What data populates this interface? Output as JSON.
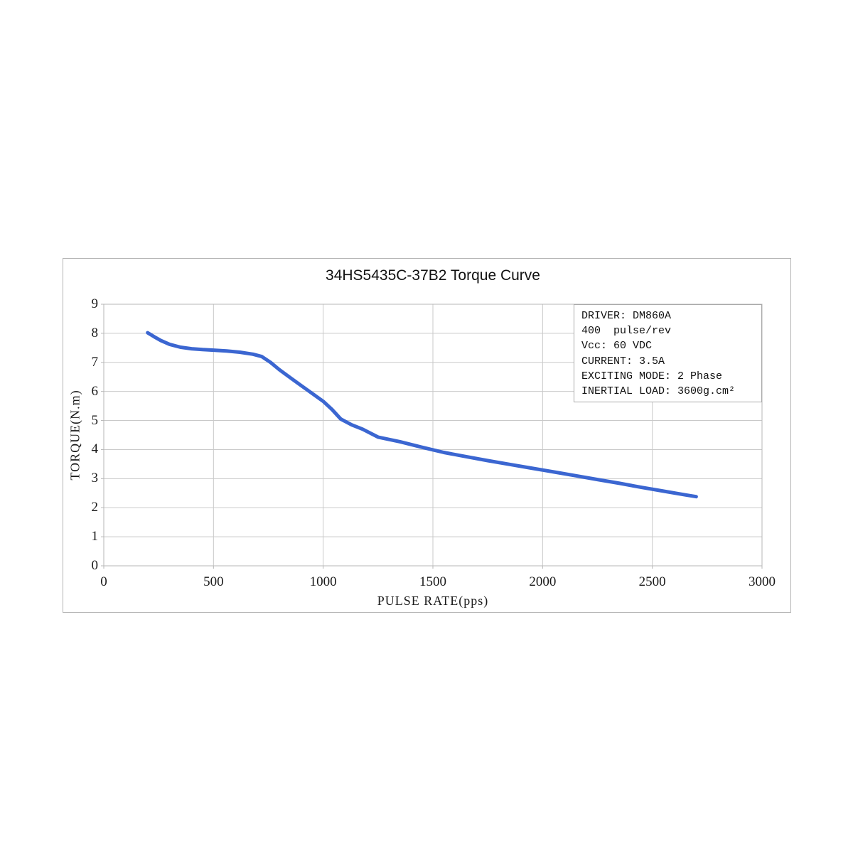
{
  "chart_data": {
    "type": "line",
    "title": "34HS5435C-37B2 Torque Curve",
    "xlabel": "PULSE RATE(pps)",
    "ylabel": "TORQUE(N.m)",
    "xlim": [
      0,
      3000
    ],
    "ylim": [
      0,
      9
    ],
    "x_ticks": [
      0,
      500,
      1000,
      1500,
      2000,
      2500,
      3000
    ],
    "y_ticks": [
      0,
      1,
      2,
      3,
      4,
      5,
      6,
      7,
      8,
      9
    ],
    "grid": true,
    "legend_position": "top-right",
    "colors": {
      "curve": "#3b66d1",
      "grid": "#c9c9c9",
      "plot_border": "#b7b7b7",
      "frame_border": "#b3b3b3",
      "text": "#1a1a1a",
      "background": "#ffffff"
    },
    "series": [
      {
        "name": "torque-curve",
        "x": [
          200,
          230,
          260,
          300,
          350,
          400,
          450,
          500,
          560,
          620,
          680,
          720,
          760,
          800,
          850,
          900,
          950,
          1000,
          1040,
          1080,
          1130,
          1180,
          1250,
          1350,
          1450,
          1550,
          1650,
          1750,
          1850,
          1950,
          2050,
          2150,
          2250,
          2350,
          2450,
          2550,
          2650,
          2700
        ],
        "y": [
          8.02,
          7.88,
          7.75,
          7.62,
          7.52,
          7.47,
          7.44,
          7.42,
          7.39,
          7.35,
          7.28,
          7.2,
          7.0,
          6.75,
          6.47,
          6.2,
          5.93,
          5.66,
          5.38,
          5.05,
          4.85,
          4.7,
          4.43,
          4.27,
          4.08,
          3.9,
          3.76,
          3.62,
          3.49,
          3.36,
          3.23,
          3.1,
          2.97,
          2.84,
          2.7,
          2.57,
          2.44,
          2.38
        ]
      }
    ],
    "info_box_lines": [
      "DRIVER: DM860A",
      "400  pulse/rev",
      "Vcc: 60 VDC",
      "CURRENT: 3.5A",
      "EXCITING MODE: 2 Phase",
      "INERTIAL LOAD: 3600g.cm²"
    ]
  }
}
